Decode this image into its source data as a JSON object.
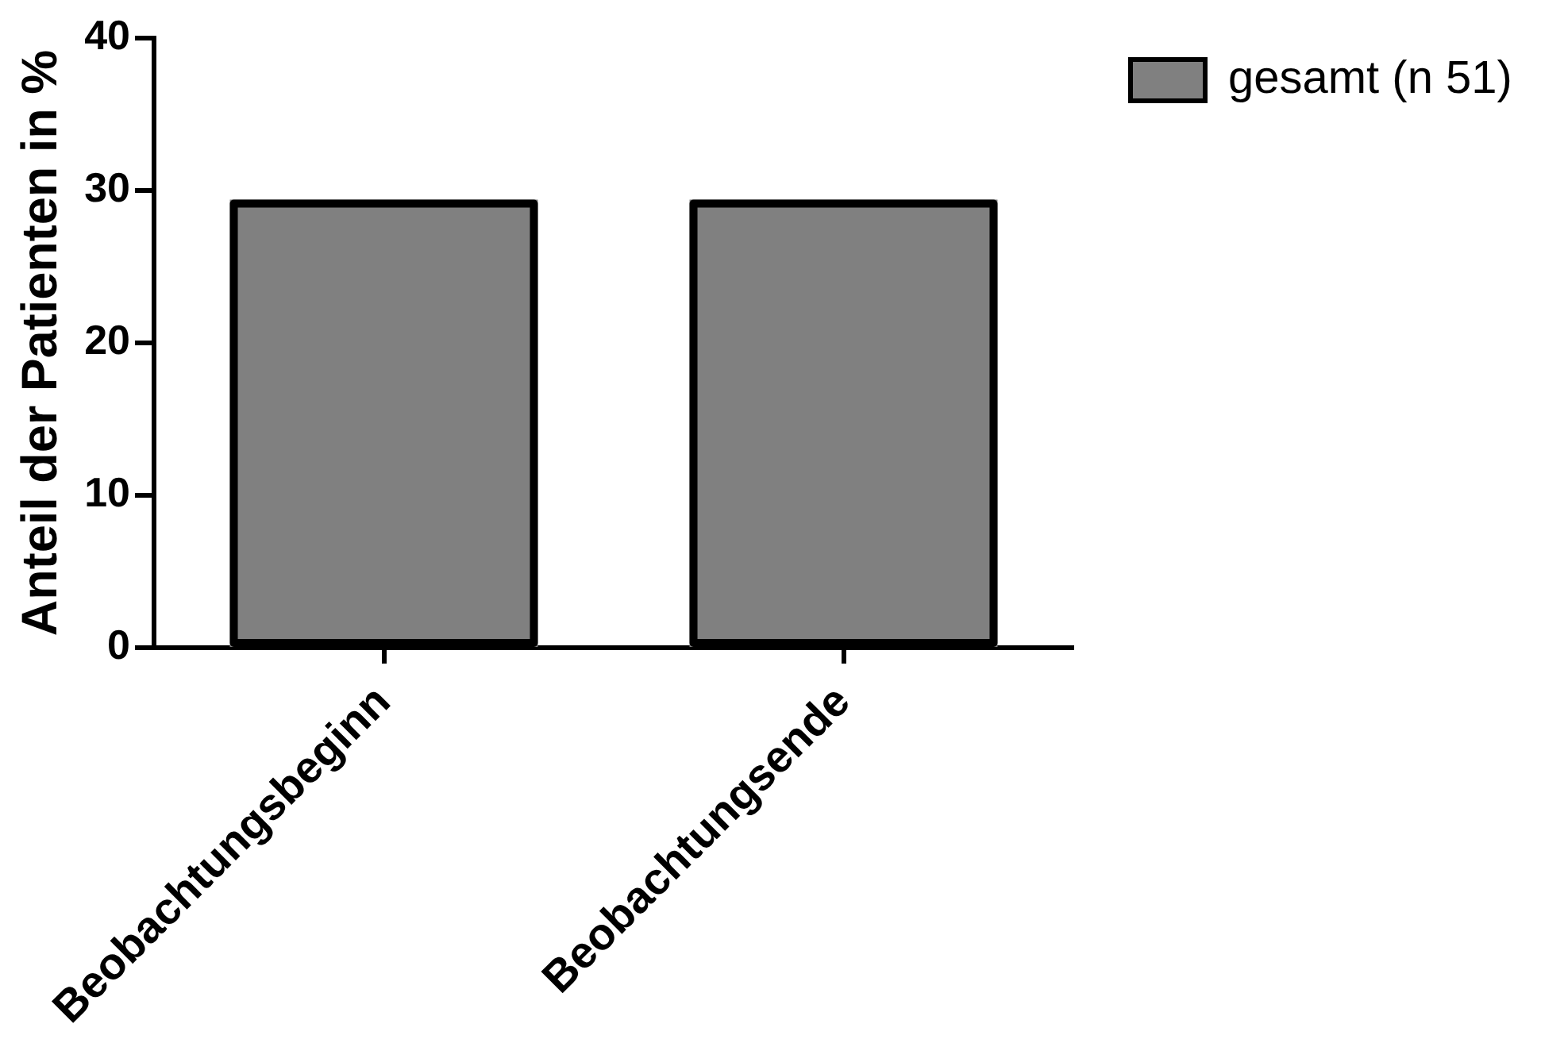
{
  "chart_data": {
    "type": "bar",
    "categories": [
      "Beobachtungsbeginn",
      "Beobachtungsende"
    ],
    "series": [
      {
        "name": "gesamt (n 51)",
        "color": "#808080",
        "values": [
          29.4,
          29.4
        ]
      }
    ],
    "ylabel": "Anteil der Patienten in %",
    "ylim": [
      0,
      40
    ],
    "yticks": [
      0,
      10,
      20,
      30,
      40
    ],
    "legend": "top right"
  }
}
